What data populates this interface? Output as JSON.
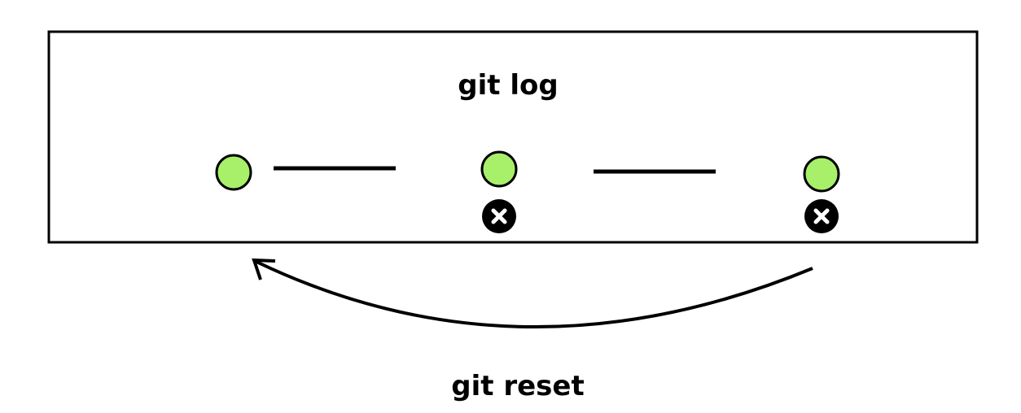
{
  "panel_title": "git log",
  "action_label": "git reset",
  "commits": [
    {
      "marked_removed": false
    },
    {
      "marked_removed": true
    },
    {
      "marked_removed": true
    }
  ],
  "arrow": {
    "from": "latest-commit",
    "to": "first-commit"
  },
  "icons": {
    "removed_marker": "close-circle-icon"
  },
  "colors": {
    "commit_fill": "#a8f06a",
    "stroke": "#000000",
    "marker_fill": "#000000",
    "marker_cross": "#ffffff"
  }
}
